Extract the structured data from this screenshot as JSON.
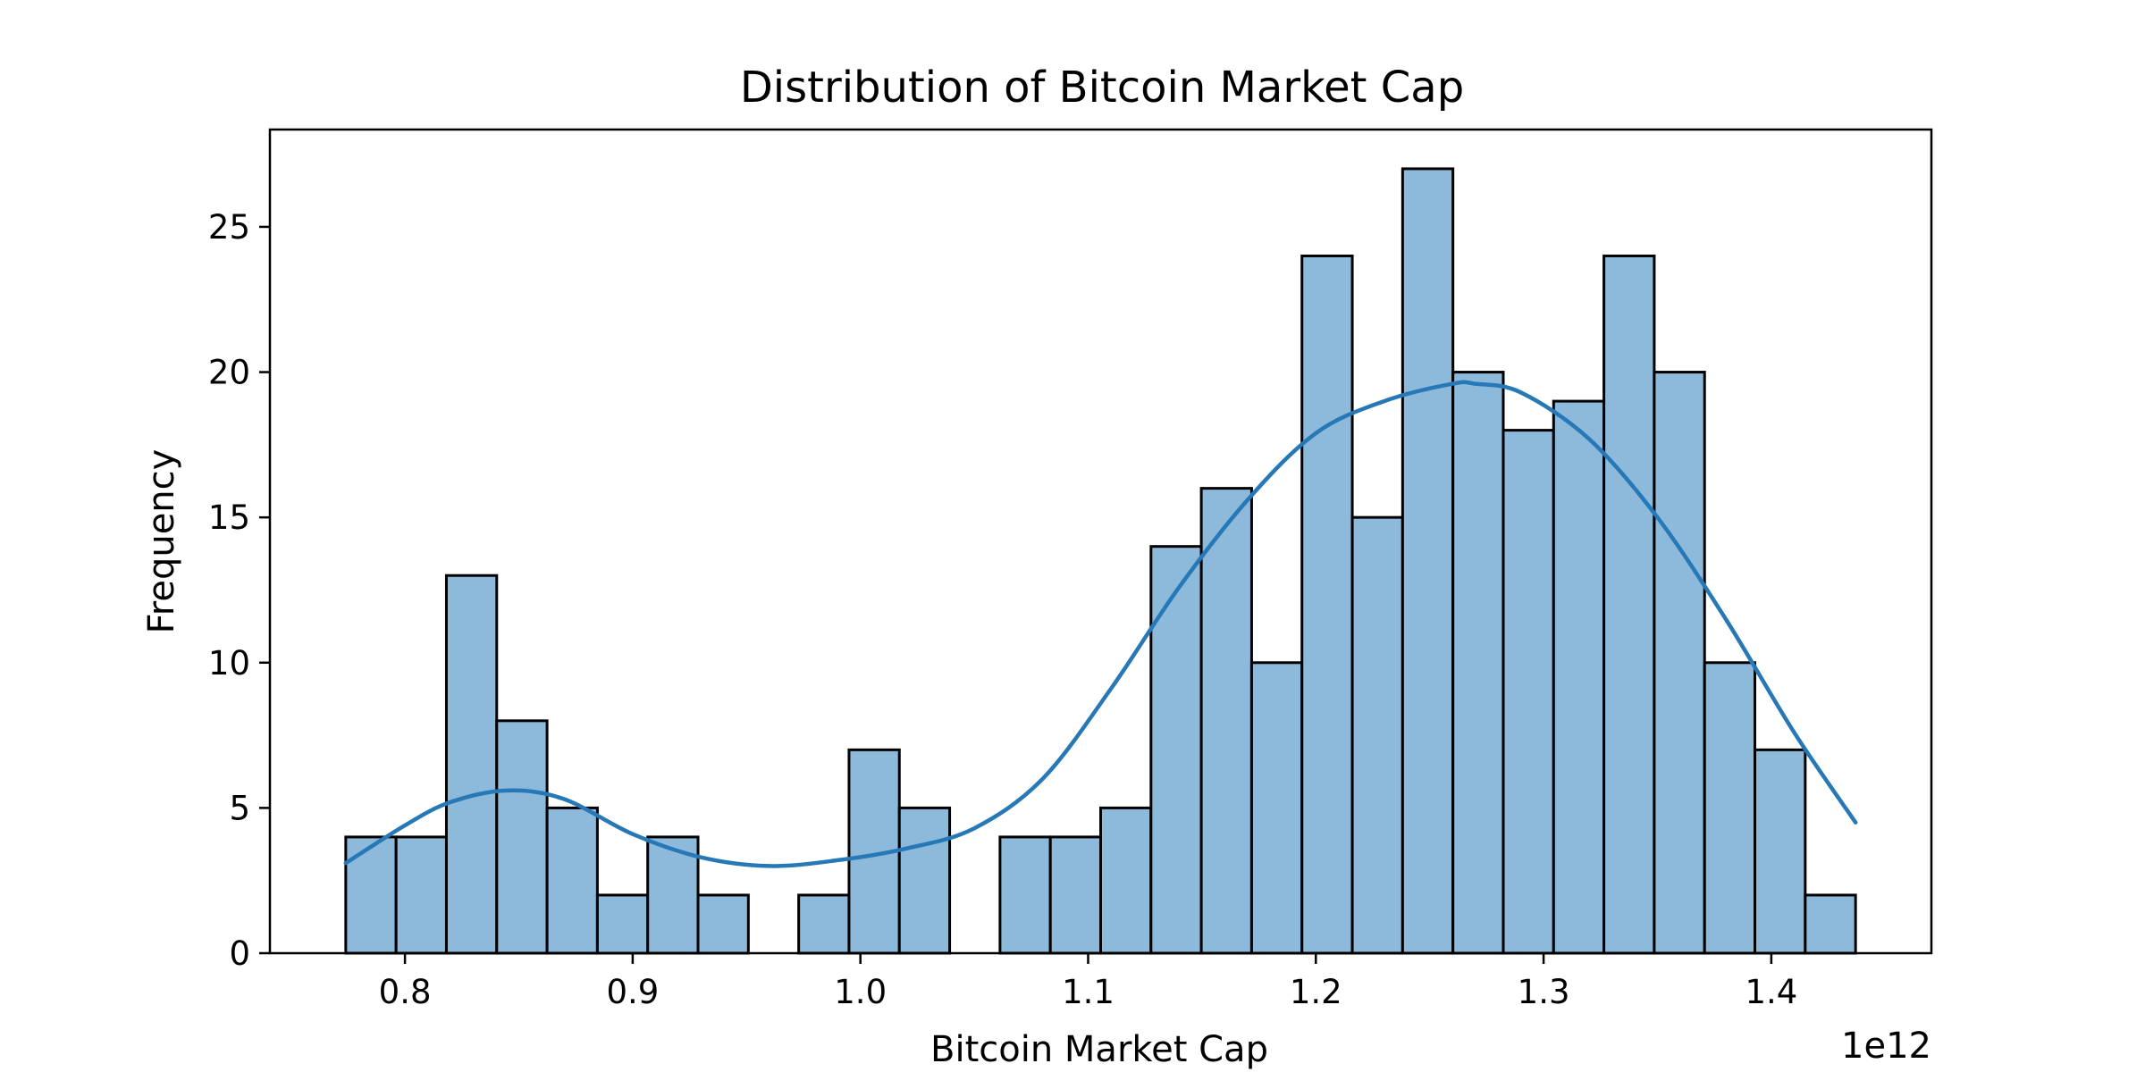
{
  "chart_data": {
    "type": "bar",
    "title": "Distribution of Bitcoin Market Cap",
    "xlabel": "Bitcoin Market Cap",
    "ylabel": "Frequency",
    "x_offset_label": "1e12",
    "bin_width": 0.0221,
    "bin_edges": [
      0.774,
      0.7961,
      0.8182,
      0.8403,
      0.8624,
      0.8845,
      0.9066,
      0.9287,
      0.9508,
      0.9729,
      0.995,
      1.0171,
      1.0392,
      1.0613,
      1.0834,
      1.1055,
      1.1276,
      1.1497,
      1.1718,
      1.1939,
      1.216,
      1.2381,
      1.2602,
      1.2823,
      1.3044,
      1.3265,
      1.3486,
      1.3707,
      1.3928,
      1.4149,
      1.437
    ],
    "values": [
      4,
      4,
      13,
      8,
      5,
      2,
      4,
      2,
      0,
      2,
      7,
      5,
      0,
      4,
      4,
      5,
      14,
      16,
      10,
      24,
      15,
      27,
      20,
      18,
      19,
      24,
      20,
      10,
      7,
      2
    ],
    "kde": {
      "x": [
        0.774,
        0.8,
        0.82,
        0.845,
        0.87,
        0.9,
        0.93,
        0.96,
        0.99,
        1.02,
        1.05,
        1.08,
        1.11,
        1.14,
        1.17,
        1.2,
        1.23,
        1.26,
        1.27,
        1.29,
        1.32,
        1.35,
        1.38,
        1.41,
        1.437
      ],
      "y": [
        3.1,
        4.4,
        5.2,
        5.6,
        5.3,
        4.1,
        3.3,
        3.0,
        3.2,
        3.6,
        4.3,
        6.0,
        9.1,
        12.6,
        15.6,
        17.9,
        19.0,
        19.6,
        19.6,
        19.3,
        17.7,
        15.0,
        11.5,
        7.6,
        4.5
      ]
    },
    "xlim": [
      0.7407,
      1.4703
    ],
    "ylim": [
      0,
      28.35
    ],
    "x_ticks": [
      0.8,
      0.9,
      1.0,
      1.1,
      1.2,
      1.3,
      1.4
    ],
    "x_tick_labels": [
      "0.8",
      "0.9",
      "1.0",
      "1.1",
      "1.2",
      "1.3",
      "1.4"
    ],
    "y_ticks": [
      0,
      5,
      10,
      15,
      20,
      25
    ],
    "y_tick_labels": [
      "0",
      "5",
      "10",
      "15",
      "20",
      "25"
    ],
    "bar_color": "#8db9db",
    "bar_edge_color": "#000000",
    "kde_color": "#2678b6",
    "grid": false,
    "legend": "none"
  }
}
